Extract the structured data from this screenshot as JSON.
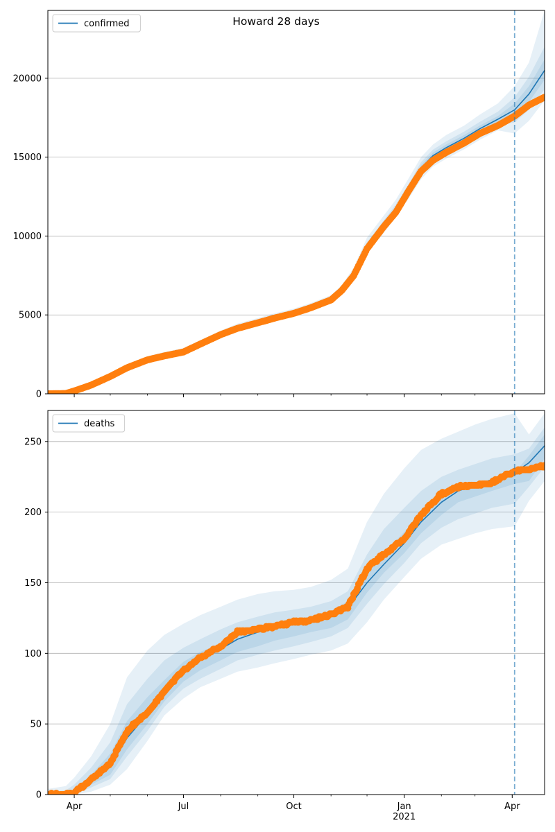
{
  "figure": {
    "title": "Howard 28 days"
  },
  "colors": {
    "line": "#1f77b4",
    "observed": "#ff7f0e",
    "band": "#1f77b4",
    "grid": "#b0b0b0",
    "vline": "#1f77b4"
  },
  "chart_data": [
    {
      "type": "line",
      "legend": "confirmed",
      "legend_position": "top-left",
      "grid": "horizontal",
      "x_axis": {
        "type": "date",
        "range": [
          "2020-03-10",
          "2021-04-28"
        ],
        "ticks": [
          {
            "date": "2020-04-01",
            "label": ""
          },
          {
            "date": "2020-07-01",
            "label": ""
          },
          {
            "date": "2020-10-01",
            "label": ""
          },
          {
            "date": "2021-01-01",
            "label": ""
          },
          {
            "date": "2021-04-01",
            "label": ""
          }
        ]
      },
      "ylim": [
        0,
        24300
      ],
      "yticks": [
        0,
        5000,
        10000,
        15000,
        20000
      ],
      "forecast_start": "2021-04-03",
      "series": [
        {
          "name": "confirmed",
          "kind": "model_median",
          "points": [
            [
              "2020-03-10",
              0
            ],
            [
              "2020-03-25",
              20
            ],
            [
              "2020-04-01",
              200
            ],
            [
              "2020-04-15",
              600
            ],
            [
              "2020-05-01",
              1150
            ],
            [
              "2020-05-15",
              1700
            ],
            [
              "2020-06-01",
              2200
            ],
            [
              "2020-06-15",
              2450
            ],
            [
              "2020-07-01",
              2700
            ],
            [
              "2020-07-15",
              3200
            ],
            [
              "2020-08-01",
              3800
            ],
            [
              "2020-08-15",
              4200
            ],
            [
              "2020-09-01",
              4550
            ],
            [
              "2020-09-15",
              4850
            ],
            [
              "2020-10-01",
              5150
            ],
            [
              "2020-10-15",
              5500
            ],
            [
              "2020-11-01",
              6000
            ],
            [
              "2020-11-10",
              6600
            ],
            [
              "2020-11-20",
              7600
            ],
            [
              "2020-12-01",
              9300
            ],
            [
              "2020-12-15",
              10700
            ],
            [
              "2020-12-25",
              11700
            ],
            [
              "2021-01-05",
              13000
            ],
            [
              "2021-01-15",
              14300
            ],
            [
              "2021-01-25",
              15100
            ],
            [
              "2021-02-05",
              15600
            ],
            [
              "2021-02-20",
              16200
            ],
            [
              "2021-03-05",
              16800
            ],
            [
              "2021-03-20",
              17400
            ],
            [
              "2021-04-03",
              18000
            ],
            [
              "2021-04-15",
              19000
            ],
            [
              "2021-04-28",
              20500
            ]
          ]
        },
        {
          "name": "",
          "kind": "observed",
          "points": [
            [
              "2020-03-10",
              0
            ],
            [
              "2020-03-25",
              20
            ],
            [
              "2020-04-01",
              180
            ],
            [
              "2020-04-15",
              550
            ],
            [
              "2020-05-01",
              1100
            ],
            [
              "2020-05-15",
              1650
            ],
            [
              "2020-06-01",
              2150
            ],
            [
              "2020-06-15",
              2400
            ],
            [
              "2020-07-01",
              2650
            ],
            [
              "2020-07-15",
              3150
            ],
            [
              "2020-08-01",
              3750
            ],
            [
              "2020-08-15",
              4150
            ],
            [
              "2020-09-01",
              4500
            ],
            [
              "2020-09-15",
              4800
            ],
            [
              "2020-10-01",
              5100
            ],
            [
              "2020-10-15",
              5450
            ],
            [
              "2020-11-01",
              5950
            ],
            [
              "2020-11-10",
              6550
            ],
            [
              "2020-11-20",
              7500
            ],
            [
              "2020-12-01",
              9200
            ],
            [
              "2020-12-15",
              10600
            ],
            [
              "2020-12-25",
              11500
            ],
            [
              "2021-01-05",
              12900
            ],
            [
              "2021-01-15",
              14100
            ],
            [
              "2021-01-25",
              14800
            ],
            [
              "2021-02-05",
              15300
            ],
            [
              "2021-02-20",
              15900
            ],
            [
              "2021-03-05",
              16500
            ],
            [
              "2021-03-20",
              17000
            ],
            [
              "2021-04-03",
              17600
            ],
            [
              "2021-04-15",
              18300
            ],
            [
              "2021-04-28",
              18800
            ]
          ]
        }
      ],
      "bands": [
        {
          "lower": [
            0,
            0,
            150,
            520,
            1050,
            1550,
            2050,
            2300,
            2550,
            3050,
            3650,
            4050,
            4400,
            4700,
            5000,
            5350,
            5850,
            6400,
            7300,
            8900,
            10200,
            11200,
            12400,
            13600,
            14400,
            14900,
            15500,
            16100,
            16700,
            16500,
            17300,
            18600
          ],
          "upper": [
            20,
            60,
            300,
            720,
            1300,
            1880,
            2380,
            2650,
            2900,
            3400,
            4000,
            4450,
            4800,
            5100,
            5400,
            5750,
            6250,
            6900,
            8000,
            9900,
            11300,
            12300,
            13700,
            15000,
            15800,
            16400,
            17000,
            17700,
            18400,
            19500,
            21000,
            24300
          ]
        },
        {
          "lower": [
            0,
            10,
            170,
            550,
            1090,
            1610,
            2110,
            2360,
            2610,
            3110,
            3710,
            4110,
            4460,
            4760,
            5060,
            5410,
            5910,
            6480,
            7420,
            9080,
            10440,
            11420,
            12680,
            13920,
            14720,
            15200,
            15800,
            16400,
            17000,
            17200,
            18000,
            19300
          ],
          "upper": [
            10,
            40,
            240,
            660,
            1220,
            1800,
            2300,
            2560,
            2810,
            3310,
            3910,
            4320,
            4670,
            4970,
            5270,
            5620,
            6120,
            6760,
            7820,
            9600,
            11000,
            12000,
            13330,
            14680,
            15480,
            16000,
            16620,
            17240,
            17880,
            18800,
            20100,
            22000
          ]
        },
        {
          "lower": [
            0,
            15,
            185,
            575,
            1120,
            1655,
            2155,
            2405,
            2655,
            3155,
            3755,
            4155,
            4505,
            4805,
            5105,
            5455,
            5955,
            6540,
            7510,
            9190,
            10570,
            11560,
            12840,
            14110,
            14910,
            15400,
            16000,
            16600,
            17200,
            17600,
            18500,
            19900
          ],
          "upper": [
            5,
            28,
            215,
            625,
            1180,
            1745,
            2245,
            2495,
            2745,
            3245,
            3845,
            4245,
            4595,
            4895,
            5195,
            5545,
            6045,
            6660,
            7690,
            9410,
            10830,
            11840,
            13160,
            14490,
            15290,
            15800,
            16400,
            17000,
            17600,
            18400,
            19500,
            21200
          ]
        }
      ]
    },
    {
      "type": "line",
      "legend": "deaths",
      "legend_position": "top-left",
      "grid": "horizontal",
      "x_axis": {
        "type": "date",
        "range": [
          "2020-03-10",
          "2021-04-28"
        ],
        "ticks": [
          {
            "date": "2020-04-01",
            "label": "Apr"
          },
          {
            "date": "2020-07-01",
            "label": "Jul"
          },
          {
            "date": "2020-10-01",
            "label": "Oct"
          },
          {
            "date": "2021-01-01",
            "label": "Jan\n2021"
          },
          {
            "date": "2021-04-01",
            "label": "Apr"
          }
        ]
      },
      "ylim": [
        0,
        272
      ],
      "yticks": [
        0,
        50,
        100,
        150,
        200,
        250
      ],
      "forecast_start": "2021-04-03",
      "series": [
        {
          "name": "deaths",
          "kind": "model_median",
          "points": [
            [
              "2020-03-10",
              0
            ],
            [
              "2020-03-25",
              0
            ],
            [
              "2020-04-01",
              2
            ],
            [
              "2020-04-15",
              10
            ],
            [
              "2020-05-01",
              20
            ],
            [
              "2020-05-15",
              40
            ],
            [
              "2020-06-01",
              57
            ],
            [
              "2020-06-15",
              72
            ],
            [
              "2020-07-01",
              87
            ],
            [
              "2020-07-15",
              95
            ],
            [
              "2020-08-01",
              103
            ],
            [
              "2020-08-15",
              110
            ],
            [
              "2020-09-01",
              115
            ],
            [
              "2020-09-15",
              118
            ],
            [
              "2020-10-01",
              121
            ],
            [
              "2020-10-15",
              124
            ],
            [
              "2020-11-01",
              127
            ],
            [
              "2020-11-15",
              132
            ],
            [
              "2020-12-01",
              150
            ],
            [
              "2020-12-15",
              163
            ],
            [
              "2021-01-01",
              178
            ],
            [
              "2021-01-15",
              193
            ],
            [
              "2021-02-01",
              207
            ],
            [
              "2021-02-15",
              215
            ],
            [
              "2021-03-01",
              219
            ],
            [
              "2021-03-15",
              223
            ],
            [
              "2021-04-03",
              228
            ],
            [
              "2021-04-15",
              235
            ],
            [
              "2021-04-28",
              247
            ]
          ]
        },
        {
          "name": "",
          "kind": "observed",
          "points": [
            [
              "2020-03-10",
              0
            ],
            [
              "2020-03-25",
              0
            ],
            [
              "2020-04-01",
              1
            ],
            [
              "2020-04-15",
              11
            ],
            [
              "2020-05-01",
              22
            ],
            [
              "2020-05-15",
              45
            ],
            [
              "2020-06-01",
              58
            ],
            [
              "2020-06-15",
              73
            ],
            [
              "2020-07-01",
              88
            ],
            [
              "2020-07-15",
              97
            ],
            [
              "2020-08-01",
              105
            ],
            [
              "2020-08-15",
              115
            ],
            [
              "2020-09-01",
              117
            ],
            [
              "2020-09-15",
              119
            ],
            [
              "2020-10-01",
              122
            ],
            [
              "2020-10-15",
              123
            ],
            [
              "2020-11-01",
              128
            ],
            [
              "2020-11-15",
              133
            ],
            [
              "2020-12-01",
              160
            ],
            [
              "2020-12-15",
              170
            ],
            [
              "2021-01-01",
              181
            ],
            [
              "2021-01-15",
              198
            ],
            [
              "2021-02-01",
              213
            ],
            [
              "2021-02-15",
              218
            ],
            [
              "2021-03-01",
              219
            ],
            [
              "2021-03-15",
              221
            ],
            [
              "2021-04-03",
              229
            ],
            [
              "2021-04-15",
              230
            ],
            [
              "2021-04-28",
              233
            ]
          ]
        }
      ],
      "bands": [
        {
          "lower": [
            0,
            0,
            0,
            2,
            7,
            18,
            38,
            56,
            68,
            76,
            82,
            87,
            90,
            93,
            96,
            99,
            102,
            107,
            122,
            138,
            154,
            167,
            177,
            181,
            185,
            188,
            190,
            208,
            222
          ],
          "upper": [
            4,
            6,
            12,
            27,
            50,
            83,
            102,
            113,
            121,
            127,
            133,
            138,
            142,
            144,
            145,
            147,
            152,
            160,
            193,
            213,
            231,
            244,
            252,
            257,
            262,
            266,
            270,
            255,
            270
          ]
        },
        {
          "lower": [
            0,
            0,
            0,
            5,
            11,
            27,
            45,
            62,
            75,
            82,
            89,
            95,
            99,
            102,
            105,
            108,
            112,
            118,
            135,
            149,
            164,
            178,
            189,
            195,
            199,
            203,
            206,
            218,
            232
          ],
          "upper": [
            2,
            3,
            7,
            19,
            37,
            64,
            82,
            95,
            104,
            110,
            117,
            122,
            126,
            129,
            131,
            133,
            137,
            144,
            170,
            188,
            203,
            215,
            225,
            230,
            234,
            238,
            241,
            245,
            260
          ]
        },
        {
          "lower": [
            0,
            0,
            0,
            7,
            14,
            32,
            50,
            66,
            80,
            88,
            95,
            101,
            105,
            109,
            112,
            115,
            118,
            124,
            143,
            157,
            171,
            185,
            198,
            207,
            211,
            215,
            220,
            222,
            238
          ],
          "upper": [
            1,
            1,
            4,
            14,
            29,
            52,
            69,
            81,
            94,
            101,
            107,
            114,
            118,
            121,
            124,
            126,
            130,
            137,
            158,
            171,
            186,
            199,
            210,
            216,
            219,
            223,
            228,
            240,
            255
          ]
        }
      ]
    }
  ]
}
